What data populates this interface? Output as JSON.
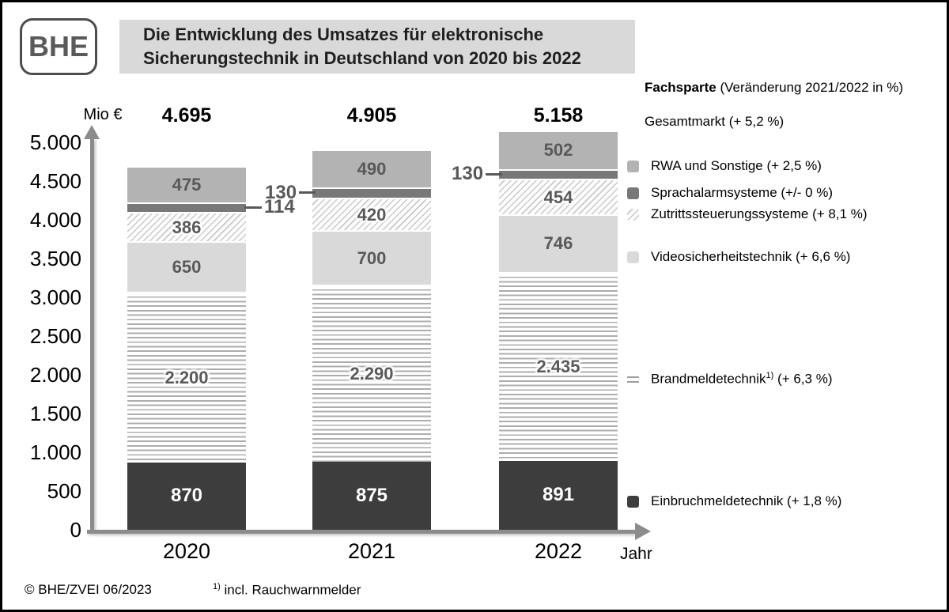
{
  "logo_text": "BHE",
  "title": {
    "line1": "Die Entwicklung des Umsatzes für elektronische",
    "line2": "Sicherungstechnik in Deutschland von 2020 bis 2022"
  },
  "legend": {
    "header_title": "Fachsparte",
    "header_note": "(Veränderung 2021/2022 in %)",
    "gesamtmarkt": "Gesamtmarkt (+ 5,2 %)"
  },
  "axis": {
    "y_unit": "Mio €",
    "x_title": "Jahr",
    "y_ticks": [
      "5.000",
      "4.500",
      "4.000",
      "3.500",
      "3.000",
      "2.500",
      "2.000",
      "1.500",
      "1.000",
      "500",
      "0"
    ]
  },
  "footer": {
    "copyright": "© BHE/ZVEI 06/2023",
    "footnote_marker": "1)",
    "footnote_text": "incl. Rauchwarnmelder"
  },
  "colors": {
    "title_bg": "#d9d9d9",
    "axis": "#8c8c8c",
    "segment_label": "#595959",
    "einbruchmeldetechnik": "#3d3d3d",
    "brandmeldetechnik_stripe": "#adadad",
    "videosicherheitstechnik": "#d9d9d9",
    "zutrittssteuerung_hatch": "#c9c9c9",
    "sprachalarmsysteme": "#787878",
    "rwa_und_sonstige": "#b3b3b3"
  },
  "chart_data": {
    "type": "bar",
    "stacked": true,
    "title": "Die Entwicklung des Umsatzes für elektronische Sicherungstechnik in Deutschland von 2020 bis 2022",
    "unit": "Mio €",
    "xlabel": "Jahr",
    "ylabel": "Mio €",
    "ylim": [
      0,
      5000
    ],
    "ytick_step": 500,
    "grid": false,
    "legend_position": "right",
    "categories": [
      "2020",
      "2021",
      "2022"
    ],
    "totals": [
      4695,
      4905,
      5158
    ],
    "gesamtmarkt_change": "+ 5,2 %",
    "series": [
      {
        "key": "einbruch",
        "name": "Einbruchmeldetechnik",
        "change": "+ 1,8 %",
        "values": [
          870,
          875,
          891
        ],
        "label": "inside"
      },
      {
        "key": "brand",
        "name": "Brandmeldetechnik",
        "footnote": "1)",
        "change": "+ 6,3 %",
        "values": [
          2200,
          2290,
          2435
        ],
        "label": "inside"
      },
      {
        "key": "video",
        "name": "Videosicherheitstechnik",
        "change": "+ 6,6 %",
        "values": [
          650,
          700,
          746
        ],
        "label": "inside"
      },
      {
        "key": "zutritt",
        "name": "Zutrittssteuerungssysteme",
        "change": "+ 8,1 %",
        "values": [
          386,
          420,
          454
        ],
        "label": "inside"
      },
      {
        "key": "sprach",
        "name": "Sprachalarmsysteme",
        "change": "+/- 0 %",
        "values": [
          114,
          130,
          130
        ],
        "label": "callout",
        "callout_sides": [
          "right",
          "left",
          "left"
        ]
      },
      {
        "key": "rwa",
        "name": "RWA und Sonstige",
        "change": "+ 2,5 %",
        "values": [
          475,
          490,
          502
        ],
        "label": "inside"
      }
    ]
  }
}
